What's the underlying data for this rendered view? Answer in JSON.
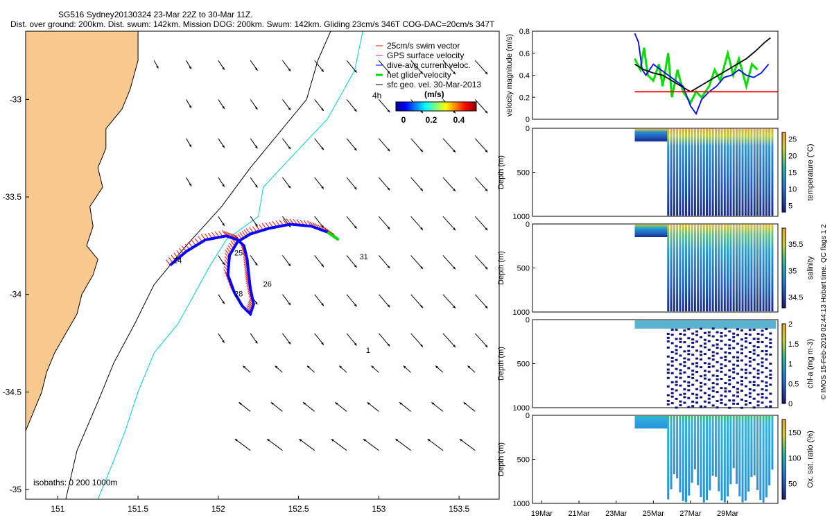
{
  "header": {
    "line1": "SG516 Sydney20130324 23-Mar 22Z to 30-Mar 11Z.",
    "line2": "Dist. over ground: 200km. Dist. swum: 142km. Mission DOG: 200km. Swum: 142km. Gliding 23cm/s 346T COG-DAC=20cm/s 347T"
  },
  "credit": "© IMOS 15-Feb-2019 02:44:13 Hobart time. QC flags 1 2",
  "colors": {
    "land": "#f8c98e",
    "swim": "#ff0000",
    "gps": "#ff00ff",
    "dac": "#0000ff",
    "net": "#00dd00",
    "geo": "#000000",
    "isobath200": "#00cccc",
    "isobath1000": "#000000"
  },
  "chart_data": [
    {
      "type": "scatter",
      "name": "map",
      "xlim": [
        150.8,
        153.75
      ],
      "ylim": [
        -35.05,
        -32.65
      ],
      "xticks": [
        "151",
        "151.5",
        "152",
        "152.5",
        "153",
        "153.5"
      ],
      "yticks": [
        "-33",
        "-33.5",
        "-34",
        "-34.5",
        "-35"
      ],
      "legend": {
        "items": [
          "25cm/s swim vector",
          "GPS surface velocity",
          "dive-avg current veloc.",
          "net glider velocity",
          "sfc geo. vel. 30-Mar-2013"
        ],
        "placement": "top-right",
        "extra": "4h"
      },
      "colorbar": {
        "title": "(m/s)",
        "ticks": [
          "0",
          "0.2",
          "0.4"
        ]
      },
      "isobaths_label": "isobaths: 0  200  1000m",
      "track": [
        [
          151.7,
          -33.85
        ],
        [
          151.8,
          -33.78
        ],
        [
          151.92,
          -33.72
        ],
        [
          152.05,
          -33.7
        ],
        [
          152.12,
          -33.72
        ],
        [
          152.16,
          -33.75
        ],
        [
          152.18,
          -33.82
        ],
        [
          152.19,
          -33.9
        ],
        [
          152.2,
          -33.97
        ],
        [
          152.22,
          -34.05
        ],
        [
          152.2,
          -34.1
        ],
        [
          152.15,
          -34.06
        ],
        [
          152.1,
          -33.99
        ],
        [
          152.06,
          -33.9
        ],
        [
          152.07,
          -33.8
        ],
        [
          152.12,
          -33.73
        ],
        [
          152.2,
          -33.69
        ],
        [
          152.32,
          -33.66
        ],
        [
          152.45,
          -33.64
        ],
        [
          152.58,
          -33.65
        ],
        [
          152.68,
          -33.68
        ],
        [
          152.75,
          -33.72
        ]
      ],
      "day_labels": [
        {
          "text": "24",
          "lon": 151.72,
          "lat": -33.84
        },
        {
          "text": "25",
          "lon": 152.1,
          "lat": -33.8
        },
        {
          "text": "26",
          "lon": 152.28,
          "lat": -33.96
        },
        {
          "text": "28",
          "lon": 152.1,
          "lat": -34.01
        },
        {
          "text": "31",
          "lon": 152.88,
          "lat": -33.82
        },
        {
          "text": "1",
          "lon": 152.92,
          "lat": -34.3
        }
      ]
    },
    {
      "type": "line",
      "name": "velocity",
      "ylabel": "velocity magnitude (m/s)",
      "ylim": [
        0,
        0.8
      ],
      "yticks": [
        "0",
        "0.2",
        "0.4",
        "0.6",
        "0.8"
      ],
      "xlim_days": [
        18.5,
        31.7
      ],
      "series": [
        {
          "color": "#00dd00",
          "x": [
            24.0,
            24.3,
            24.5,
            24.7,
            25.0,
            25.3,
            25.5,
            25.8,
            26.0,
            26.3,
            26.6,
            27.0,
            27.3,
            27.6,
            28.0,
            28.3,
            28.6,
            29.0,
            29.3,
            29.6,
            30.0,
            30.3,
            30.6
          ],
          "values": [
            0.55,
            0.45,
            0.65,
            0.4,
            0.35,
            0.5,
            0.3,
            0.6,
            0.2,
            0.45,
            0.25,
            0.15,
            0.25,
            0.2,
            0.3,
            0.45,
            0.35,
            0.6,
            0.4,
            0.55,
            0.3,
            0.5,
            0.45
          ]
        },
        {
          "color": "#0000ff",
          "x": [
            24.0,
            24.2,
            24.4,
            24.6,
            25.0,
            25.4,
            25.8,
            26.2,
            26.6,
            27.0,
            27.3,
            27.6,
            28.0,
            28.4,
            28.8,
            29.2,
            29.6,
            30.0,
            30.4,
            30.8,
            31.2
          ],
          "values": [
            0.78,
            0.7,
            0.45,
            0.4,
            0.5,
            0.45,
            0.4,
            0.35,
            0.3,
            0.12,
            0.05,
            0.18,
            0.25,
            0.3,
            0.38,
            0.4,
            0.45,
            0.4,
            0.38,
            0.42,
            0.5
          ]
        },
        {
          "color": "#000000",
          "x": [
            24.0,
            24.5,
            25.0,
            25.5,
            26.0,
            26.5,
            27.0,
            27.5,
            28.0,
            28.5,
            29.0,
            29.5,
            30.0,
            30.5,
            31.0,
            31.3
          ],
          "values": [
            0.5,
            0.45,
            0.42,
            0.4,
            0.35,
            0.3,
            0.25,
            0.3,
            0.35,
            0.4,
            0.45,
            0.5,
            0.55,
            0.62,
            0.7,
            0.74
          ]
        },
        {
          "color": "#ff0000",
          "x": [
            24.0,
            31.7
          ],
          "values": [
            0.25,
            0.25
          ]
        }
      ]
    },
    {
      "type": "heatmap",
      "name": "temperature",
      "ylabel": "Depth (m)",
      "yticks": [
        "0",
        "500",
        "1000"
      ],
      "ylim": [
        0,
        1000
      ],
      "colorbar_label": "temperature (°C)",
      "colorbar_ticks": [
        "5",
        "10",
        "15",
        "20",
        "25"
      ],
      "clim": [
        3,
        27
      ]
    },
    {
      "type": "heatmap",
      "name": "salinity",
      "ylabel": "Depth (m)",
      "yticks": [
        "0",
        "500",
        "1000"
      ],
      "ylim": [
        0,
        1000
      ],
      "colorbar_label": "salinity",
      "colorbar_ticks": [
        "34.5",
        "35",
        "35.5"
      ],
      "clim": [
        34.3,
        35.8
      ]
    },
    {
      "type": "heatmap",
      "name": "chla",
      "ylabel": "Depth (m)",
      "yticks": [
        "0",
        "500",
        "1000"
      ],
      "ylim": [
        0,
        1000
      ],
      "colorbar_label": "chl-a (mg m-3)",
      "colorbar_ticks": [
        "0",
        "0.5",
        "1",
        "1.5",
        "2"
      ],
      "clim": [
        0,
        2
      ]
    },
    {
      "type": "heatmap",
      "name": "oxygen",
      "ylabel": "Depth (m)",
      "yticks": [
        "0",
        "500",
        "1000"
      ],
      "ylim": [
        0,
        1000
      ],
      "colorbar_label": "Ox. sat. ratio (%)",
      "colorbar_ticks": [
        "50",
        "100",
        "150"
      ],
      "clim": [
        20,
        175
      ],
      "xticks": [
        "19Mar",
        "21Mar",
        "23Mar",
        "25Mar",
        "27Mar",
        "29Mar"
      ]
    }
  ]
}
